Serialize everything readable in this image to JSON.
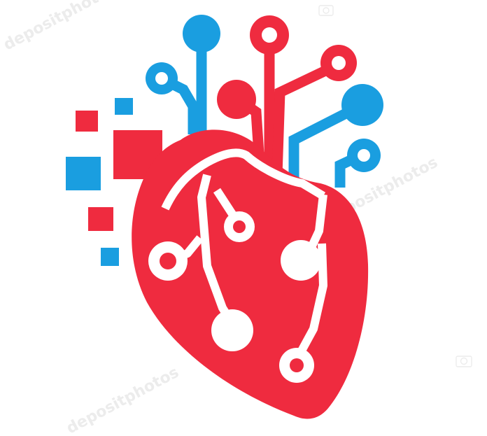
{
  "logo": {
    "subject": "heart-circuit-logo",
    "colors": {
      "heart_red": "#ef2b3f",
      "circuit_blue": "#1a9ee0",
      "background": "#ffffff",
      "trace_white": "#ffffff"
    }
  },
  "watermark": {
    "text": "depositphotos",
    "icon": "camera-icon"
  }
}
